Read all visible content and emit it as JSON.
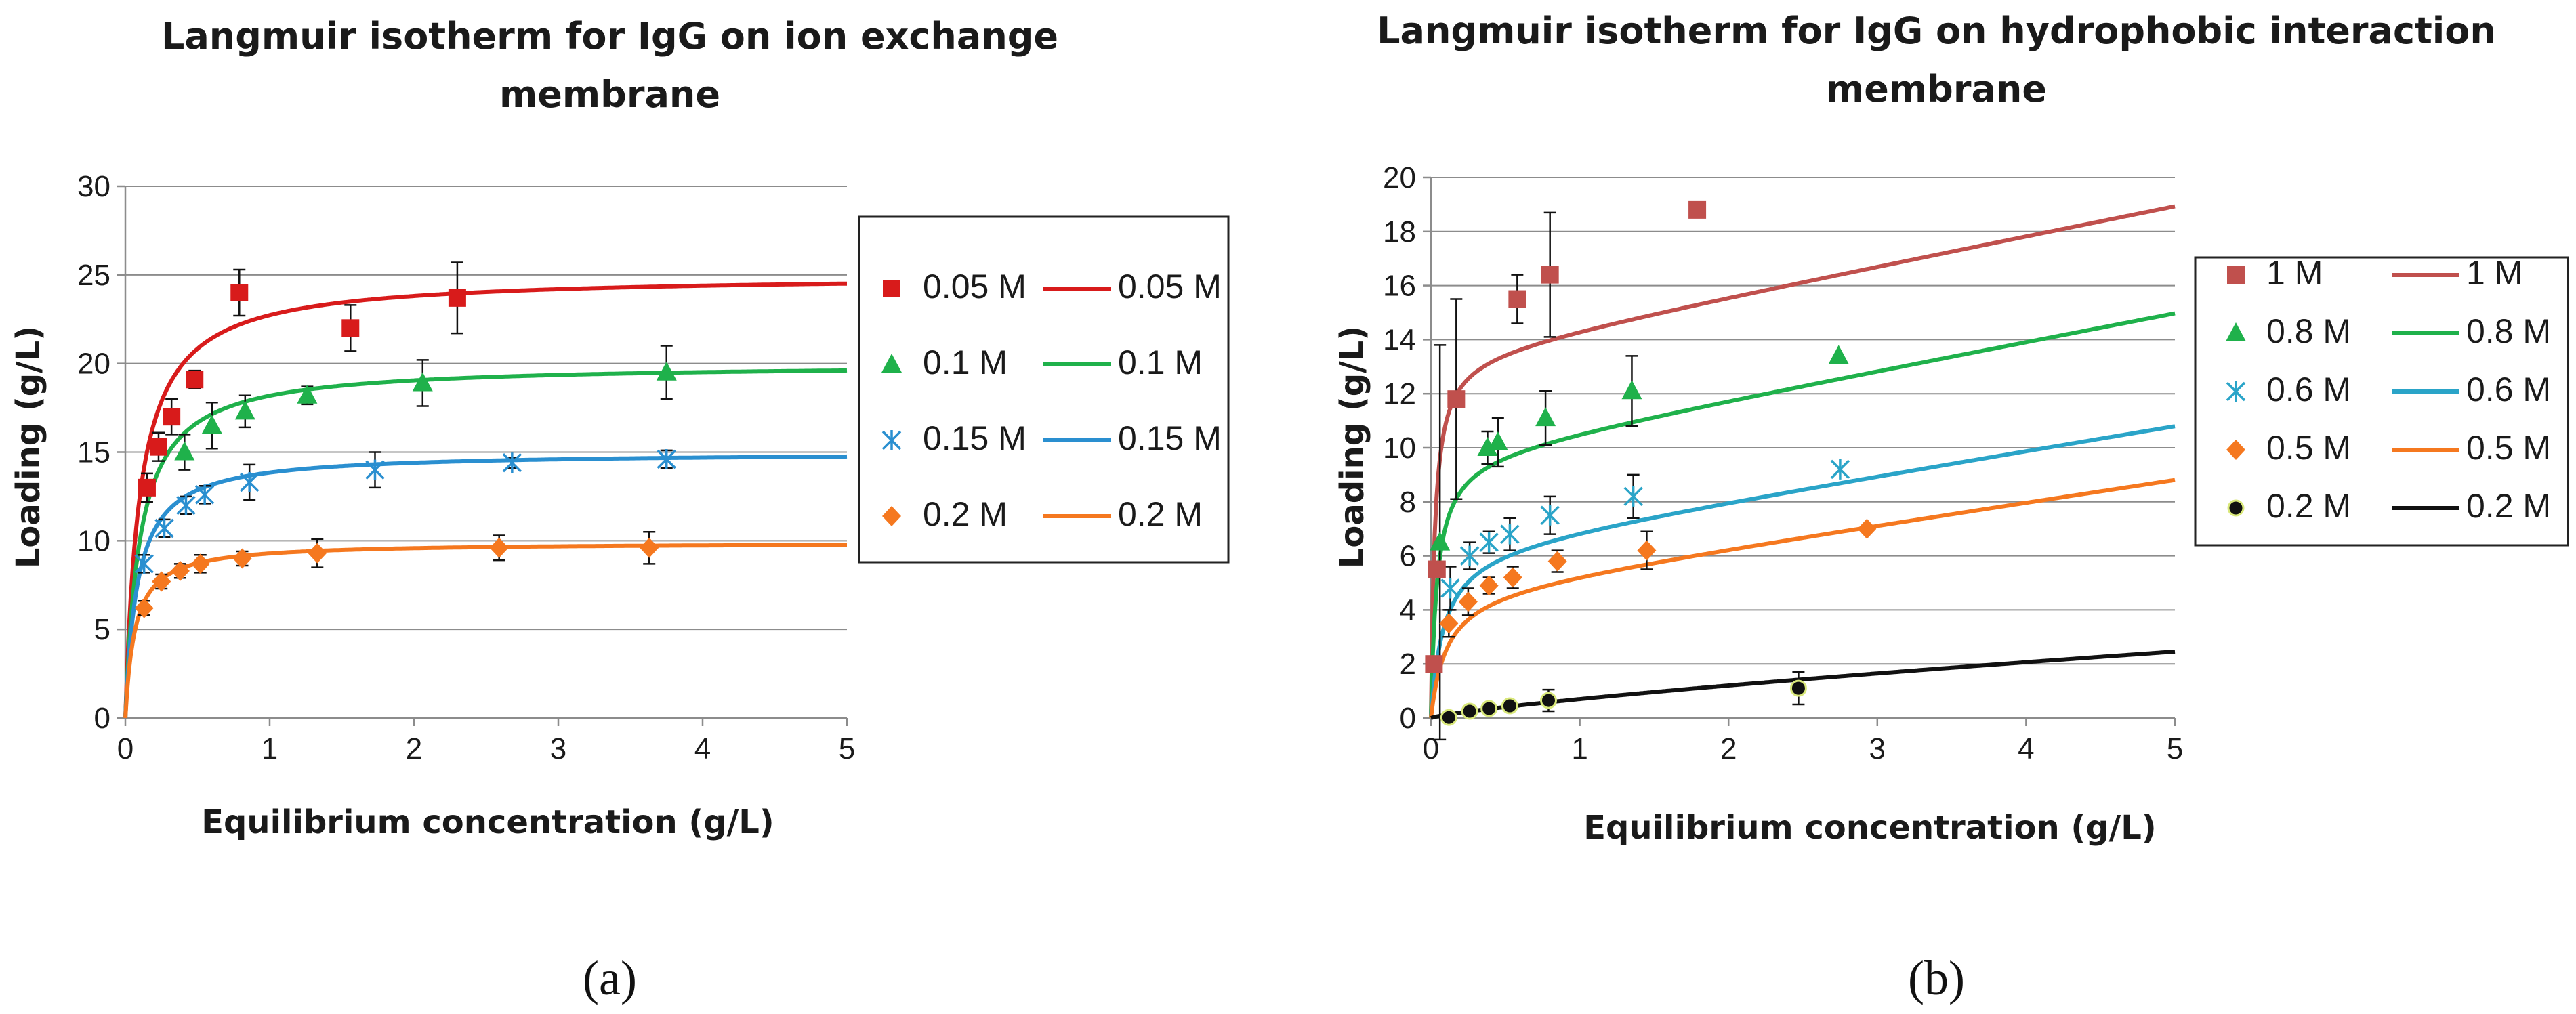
{
  "chart_data": [
    {
      "type": "scatter",
      "title_line1": "Langmuir isotherm for IgG on ion exchange",
      "title_line2": "membrane",
      "xlabel": "Equilibrium concentration (g/L)",
      "ylabel": "Loading (g/L)",
      "xlim": [
        0,
        5
      ],
      "ylim": [
        0,
        30
      ],
      "xticks": [
        0,
        1,
        2,
        3,
        4,
        5
      ],
      "yticks": [
        0,
        5,
        10,
        15,
        20,
        25,
        30
      ],
      "grid": "horizontal",
      "legend_position": "right",
      "caption": "(a)",
      "series": [
        {
          "name": "0.05 M",
          "color": "#d81b1b",
          "marker": "square",
          "points": [
            [
              0.15,
              13.0,
              0.8
            ],
            [
              0.23,
              15.3,
              0.8
            ],
            [
              0.32,
              17.0,
              1.0
            ],
            [
              0.48,
              19.1,
              0.5
            ],
            [
              0.79,
              24.0,
              1.3
            ],
            [
              1.56,
              22.0,
              1.3
            ],
            [
              2.3,
              23.7,
              2.0
            ]
          ],
          "fit_name": "0.05 M",
          "fit": {
            "qmax": 25.0,
            "K": 10.0
          }
        },
        {
          "name": "0.1 M",
          "color": "#1fb14b",
          "marker": "triangle",
          "points": [
            [
              0.41,
              15.0,
              1.0
            ],
            [
              0.6,
              16.5,
              1.3
            ],
            [
              0.83,
              17.3,
              0.9
            ],
            [
              1.26,
              18.2,
              0.5
            ],
            [
              2.06,
              18.9,
              1.3
            ],
            [
              3.75,
              19.5,
              1.5
            ]
          ],
          "fit_name": "0.1 M",
          "fit": {
            "qmax": 20.0,
            "K": 10.0
          }
        },
        {
          "name": "0.15 M",
          "color": "#2a8fd0",
          "marker": "asterisk",
          "points": [
            [
              0.13,
              8.7,
              0.5
            ],
            [
              0.27,
              10.7,
              0.5
            ],
            [
              0.42,
              12.0,
              0.5
            ],
            [
              0.55,
              12.6,
              0.5
            ],
            [
              0.86,
              13.3,
              1.0
            ],
            [
              1.73,
              14.0,
              1.0
            ],
            [
              2.68,
              14.4,
              0.3
            ],
            [
              3.75,
              14.6,
              0.5
            ]
          ],
          "fit_name": "0.15 M",
          "fit": {
            "qmax": 15.0,
            "K": 12.0
          }
        },
        {
          "name": "0.2 M",
          "color": "#f5781f",
          "marker": "diamond",
          "points": [
            [
              0.13,
              6.2,
              0.4
            ],
            [
              0.25,
              7.7,
              0.4
            ],
            [
              0.38,
              8.3,
              0.4
            ],
            [
              0.52,
              8.7,
              0.5
            ],
            [
              0.81,
              9.0,
              0.4
            ],
            [
              1.33,
              9.3,
              0.8
            ],
            [
              2.59,
              9.6,
              0.7
            ],
            [
              3.63,
              9.6,
              0.9
            ]
          ],
          "fit_name": "0.2 M",
          "fit": {
            "qmax": 9.9,
            "K": 15.0
          }
        }
      ]
    },
    {
      "type": "scatter",
      "title_line1": "Langmuir isotherm for IgG on hydrophobic interaction",
      "title_line2": "membrane",
      "xlabel": "Equilibrium concentration (g/L)",
      "ylabel": "Loading (g/L)",
      "xlim": [
        0,
        5
      ],
      "ylim": [
        0,
        20
      ],
      "xticks": [
        0,
        1,
        2,
        3,
        4,
        5
      ],
      "yticks": [
        0,
        2,
        4,
        6,
        8,
        10,
        12,
        14,
        16,
        18,
        20
      ],
      "grid": "horizontal",
      "legend_position": "right",
      "caption": "(b)",
      "series": [
        {
          "name": "1 M",
          "color": "#c0504d",
          "marker": "square",
          "points": [
            [
              0.02,
              2.0,
              0
            ],
            [
              0.04,
              5.5,
              0
            ],
            [
              0.17,
              11.8,
              3.7
            ],
            [
              0.58,
              15.5,
              0.9
            ],
            [
              0.8,
              16.4,
              2.3
            ],
            [
              1.79,
              18.8,
              0
            ]
          ],
          "fit_name": "1 M",
          "fit": {
            "qmax": 13.5,
            "K": 40.0,
            "a": 1.1
          }
        },
        {
          "name": "0.8 M",
          "color": "#1fb14b",
          "marker": "triangle",
          "points": [
            [
              0.06,
              6.5,
              7.3
            ],
            [
              0.38,
              10.0,
              0.6
            ],
            [
              0.45,
              10.2,
              0.9
            ],
            [
              0.77,
              11.1,
              1.0
            ],
            [
              1.35,
              12.1,
              1.3
            ],
            [
              2.74,
              13.4,
              0
            ]
          ],
          "fit_name": "0.8 M",
          "fit": {
            "qmax": 9.8,
            "K": 25.0,
            "a": 1.05
          }
        },
        {
          "name": "0.6 M",
          "color": "#2aa4c8",
          "marker": "asterisk",
          "points": [
            [
              0.13,
              4.8,
              0.8
            ],
            [
              0.26,
              6.0,
              0.5
            ],
            [
              0.39,
              6.5,
              0.4
            ],
            [
              0.53,
              6.8,
              0.6
            ],
            [
              0.8,
              7.5,
              0.7
            ],
            [
              1.36,
              8.2,
              0.8
            ],
            [
              2.75,
              9.2,
              0
            ]
          ],
          "fit_name": "0.6 M",
          "fit": {
            "qmax": 6.4,
            "K": 12.0,
            "a": 0.9
          }
        },
        {
          "name": "0.5 M",
          "color": "#f5781f",
          "marker": "diamond",
          "points": [
            [
              0.12,
              3.5,
              0.5
            ],
            [
              0.25,
              4.3,
              0.5
            ],
            [
              0.39,
              4.9,
              0.3
            ],
            [
              0.55,
              5.2,
              0.4
            ],
            [
              0.85,
              5.8,
              0.4
            ],
            [
              1.45,
              6.2,
              0.7
            ],
            [
              2.93,
              7.0,
              0
            ]
          ],
          "fit_name": "0.5 M",
          "fit": {
            "qmax": 4.8,
            "K": 10.0,
            "a": 0.82
          }
        },
        {
          "name": "0.2 M",
          "color": "#111111",
          "marker": "circle",
          "points": [
            [
              0.12,
              0.02,
              0
            ],
            [
              0.26,
              0.25,
              0
            ],
            [
              0.39,
              0.35,
              0
            ],
            [
              0.53,
              0.45,
              0
            ],
            [
              0.79,
              0.65,
              0.4
            ],
            [
              2.47,
              1.1,
              0.6
            ]
          ],
          "fit_name": "0.2 M",
          "fit": {
            "power": true,
            "c": 0.7,
            "n": 0.78
          }
        }
      ]
    }
  ]
}
